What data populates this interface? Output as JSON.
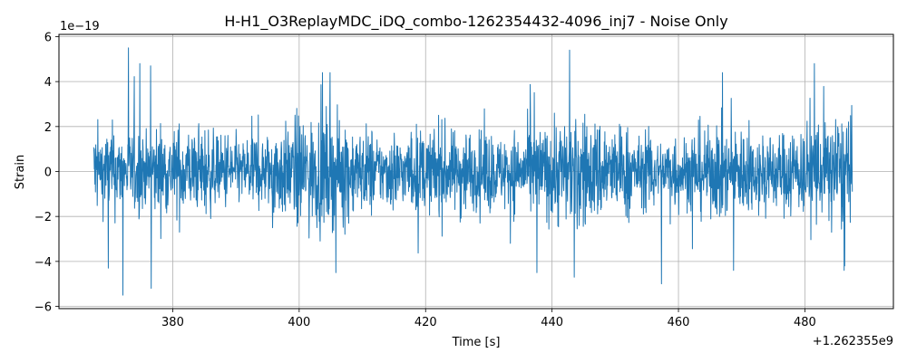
{
  "chart_data": {
    "type": "line",
    "title": "H-H1_O3ReplayMDC_iDQ_combo-1262354432-4096_inj7 - Noise Only",
    "xlabel": "Time [s]",
    "ylabel": "Strain",
    "x_offset_label": "+1.262355e9",
    "y_scale_label": "1e−19",
    "xlim": [
      362,
      494
    ],
    "ylim": [
      -6.1,
      6.1
    ],
    "x_ticks": [
      380,
      400,
      420,
      440,
      460,
      480
    ],
    "y_ticks": [
      -6,
      -4,
      -2,
      0,
      2,
      4,
      6
    ],
    "y_tick_labels": [
      "−6",
      "−4",
      "−2",
      "0",
      "2",
      "4",
      "6"
    ],
    "grid": true,
    "series": [
      {
        "color": "#1f77b4",
        "x_range": [
          367.5,
          487.5
        ],
        "rms": 0.95,
        "peaks": [
          {
            "x": 373.0,
            "y": 5.5
          },
          {
            "x": 374.8,
            "y": 4.8
          },
          {
            "x": 376.5,
            "y": 4.7
          },
          {
            "x": 372.1,
            "y": -5.5
          },
          {
            "x": 376.6,
            "y": -5.2
          },
          {
            "x": 442.8,
            "y": 5.4
          },
          {
            "x": 481.5,
            "y": 4.8
          },
          {
            "x": 457.3,
            "y": -5.0
          },
          {
            "x": 443.5,
            "y": -4.7
          },
          {
            "x": 405.8,
            "y": -4.5
          },
          {
            "x": 437.6,
            "y": -4.5
          },
          {
            "x": 369.8,
            "y": -4.3
          },
          {
            "x": 468.7,
            "y": -4.4
          },
          {
            "x": 486.3,
            "y": -4.2
          }
        ]
      }
    ]
  }
}
